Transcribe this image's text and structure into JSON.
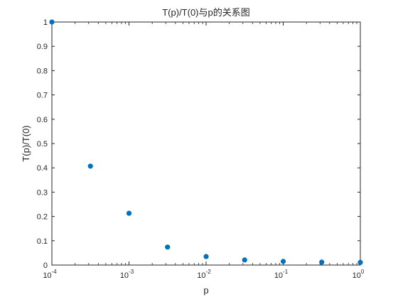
{
  "chart_data": {
    "type": "scatter",
    "title": "T(p)/T(0)与p的关系图",
    "xlabel": "p",
    "ylabel": "T(p)/T(0)",
    "xscale": "log",
    "xlim": [
      0.0001,
      1
    ],
    "ylim": [
      0,
      1
    ],
    "grid": false,
    "box": true,
    "x_ticks": [
      {
        "value": 0.0001,
        "base": "10",
        "exp": "-4"
      },
      {
        "value": 0.001,
        "base": "10",
        "exp": "-3"
      },
      {
        "value": 0.01,
        "base": "10",
        "exp": "-2"
      },
      {
        "value": 0.1,
        "base": "10",
        "exp": "-1"
      },
      {
        "value": 1,
        "base": "10",
        "exp": "0"
      }
    ],
    "y_ticks": [
      0,
      0.1,
      0.2,
      0.3,
      0.4,
      0.5,
      0.6,
      0.7,
      0.8,
      0.9,
      1
    ],
    "y_tick_labels": [
      "0",
      "0.1",
      "0.2",
      "0.3",
      "0.4",
      "0.5",
      "0.6",
      "0.7",
      "0.8",
      "0.9",
      "1"
    ],
    "marker_color": "#0072BD",
    "axis_color": "#262626",
    "points": [
      {
        "x": 0.0001,
        "y": 1.0
      },
      {
        "x": 0.000316,
        "y": 0.407
      },
      {
        "x": 0.001,
        "y": 0.213
      },
      {
        "x": 0.00316,
        "y": 0.074
      },
      {
        "x": 0.01,
        "y": 0.035
      },
      {
        "x": 0.0316,
        "y": 0.021
      },
      {
        "x": 0.1,
        "y": 0.015
      },
      {
        "x": 0.316,
        "y": 0.012
      },
      {
        "x": 1.0,
        "y": 0.011
      }
    ]
  }
}
